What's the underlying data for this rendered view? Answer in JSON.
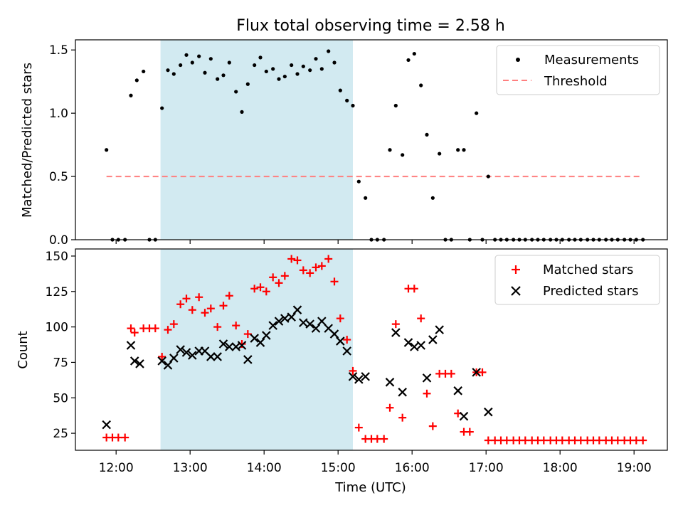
{
  "chart_data": [
    {
      "type": "scatter",
      "title": "Flux total observing time = 2.58 h",
      "xlabel": "",
      "ylabel": "Matched/Predicted stars",
      "xlim_hours": [
        11.45,
        19.45
      ],
      "ylim": [
        0,
        1.58
      ],
      "yticks": [
        0.0,
        0.5,
        1.0,
        1.5
      ],
      "ytick_labels": [
        "0.0",
        "0.5",
        "1.0",
        "1.5"
      ],
      "legend_position": "top-right",
      "shaded_region": {
        "x_start": 12.6,
        "x_end": 15.2,
        "color": "#add8e6"
      },
      "series": [
        {
          "name": "Measurements",
          "marker": "dot",
          "color": "#000000",
          "x": [
            11.87,
            11.95,
            12.03,
            12.12,
            12.2,
            12.28,
            12.37,
            12.45,
            12.53,
            12.62,
            12.7,
            12.78,
            12.87,
            12.95,
            13.03,
            13.12,
            13.2,
            13.28,
            13.37,
            13.45,
            13.53,
            13.62,
            13.7,
            13.78,
            13.87,
            13.95,
            14.03,
            14.12,
            14.2,
            14.28,
            14.37,
            14.45,
            14.53,
            14.62,
            14.7,
            14.78,
            14.87,
            14.95,
            15.03,
            15.12,
            15.2,
            15.28,
            15.37,
            15.45,
            15.53,
            15.62,
            15.7,
            15.78,
            15.87,
            15.95,
            16.03,
            16.12,
            16.2,
            16.28,
            16.37,
            16.45,
            16.53,
            16.62,
            16.7,
            16.78,
            16.87,
            16.95,
            17.03,
            17.12,
            17.2,
            17.28,
            17.37,
            17.45,
            17.53,
            17.62,
            17.7,
            17.78,
            17.87,
            17.95,
            18.03,
            18.12,
            18.2,
            18.28,
            18.37,
            18.45,
            18.53,
            18.62,
            18.7,
            18.78,
            18.87,
            18.95,
            19.03,
            19.12
          ],
          "y": [
            0.71,
            0,
            0,
            0,
            1.14,
            1.26,
            1.33,
            0,
            0,
            1.04,
            1.34,
            1.31,
            1.38,
            1.46,
            1.4,
            1.45,
            1.32,
            1.43,
            1.27,
            1.3,
            1.4,
            1.17,
            1.01,
            1.23,
            1.38,
            1.44,
            1.33,
            1.35,
            1.27,
            1.29,
            1.38,
            1.31,
            1.37,
            1.34,
            1.43,
            1.35,
            1.49,
            1.4,
            1.18,
            1.1,
            1.06,
            0.46,
            0.33,
            0,
            0,
            0,
            0.71,
            1.06,
            0.67,
            1.42,
            1.47,
            1.22,
            0.83,
            0.33,
            0.68,
            0,
            0,
            0.71,
            0.71,
            0,
            1.0,
            0,
            0.5,
            0,
            0,
            0,
            0,
            0,
            0,
            0,
            0,
            0,
            0,
            0,
            0,
            0,
            0,
            0,
            0,
            0,
            0,
            0,
            0,
            0,
            0,
            0,
            0,
            0
          ]
        },
        {
          "name": "Threshold",
          "marker": "dashed-line",
          "color": "#ff7f7f",
          "x": [
            11.87,
            19.12
          ],
          "y": [
            0.5,
            0.5
          ]
        }
      ]
    },
    {
      "type": "scatter",
      "title": "",
      "xlabel": "Time (UTC)",
      "ylabel": "Count",
      "xlim_hours": [
        11.45,
        19.45
      ],
      "ylim": [
        13,
        155
      ],
      "yticks": [
        25,
        50,
        75,
        100,
        125,
        150
      ],
      "ytick_labels": [
        "25",
        "50",
        "75",
        "100",
        "125",
        "150"
      ],
      "xticks": [
        12,
        13,
        14,
        15,
        16,
        17,
        18,
        19
      ],
      "xtick_labels": [
        "12:00",
        "13:00",
        "14:00",
        "15:00",
        "16:00",
        "17:00",
        "18:00",
        "19:00"
      ],
      "legend_position": "top-right",
      "shaded_region": {
        "x_start": 12.6,
        "x_end": 15.2,
        "color": "#add8e6"
      },
      "series": [
        {
          "name": "Matched stars",
          "marker": "plus",
          "color": "#ff0000",
          "x": [
            11.87,
            11.95,
            12.03,
            12.12,
            12.2,
            12.25,
            12.37,
            12.45,
            12.53,
            12.62,
            12.7,
            12.78,
            12.87,
            12.95,
            13.03,
            13.12,
            13.2,
            13.28,
            13.37,
            13.45,
            13.53,
            13.62,
            13.7,
            13.78,
            13.87,
            13.95,
            14.03,
            14.12,
            14.2,
            14.28,
            14.37,
            14.45,
            14.53,
            14.62,
            14.7,
            14.78,
            14.87,
            14.95,
            15.03,
            15.12,
            15.2,
            15.28,
            15.37,
            15.45,
            15.53,
            15.62,
            15.7,
            15.78,
            15.87,
            15.95,
            16.03,
            16.12,
            16.2,
            16.28,
            16.37,
            16.45,
            16.53,
            16.62,
            16.7,
            16.78,
            16.87,
            16.95,
            17.03,
            17.12,
            17.2,
            17.28,
            17.37,
            17.45,
            17.53,
            17.62,
            17.7,
            17.78,
            17.87,
            17.95,
            18.03,
            18.12,
            18.2,
            18.28,
            18.37,
            18.45,
            18.53,
            18.62,
            18.7,
            18.78,
            18.87,
            18.95,
            19.03,
            19.12
          ],
          "y": [
            22,
            22,
            22,
            22,
            99,
            96,
            99,
            99,
            99,
            79,
            98,
            102,
            116,
            120,
            112,
            121,
            110,
            113,
            100,
            115,
            122,
            101,
            88,
            95,
            127,
            128,
            125,
            135,
            131,
            136,
            148,
            147,
            140,
            138,
            142,
            143,
            148,
            132,
            106,
            91,
            69,
            29,
            21,
            21,
            21,
            21,
            43,
            102,
            36,
            127,
            127,
            106,
            53,
            30,
            67,
            67,
            67,
            39,
            26,
            26,
            68,
            68,
            20,
            20,
            20,
            20,
            20,
            20,
            20,
            20,
            20,
            20,
            20,
            20,
            20,
            20,
            20,
            20,
            20,
            20,
            20,
            20,
            20,
            20,
            20,
            20,
            20,
            20
          ]
        },
        {
          "name": "Predicted stars",
          "marker": "x",
          "color": "#000000",
          "x": [
            11.87,
            12.2,
            12.25,
            12.32,
            12.62,
            12.7,
            12.78,
            12.87,
            12.95,
            13.03,
            13.12,
            13.2,
            13.28,
            13.37,
            13.45,
            13.53,
            13.62,
            13.7,
            13.78,
            13.87,
            13.95,
            14.03,
            14.12,
            14.2,
            14.28,
            14.37,
            14.45,
            14.53,
            14.62,
            14.7,
            14.78,
            14.87,
            14.95,
            15.03,
            15.12,
            15.2,
            15.28,
            15.37,
            15.7,
            15.78,
            15.87,
            15.95,
            16.03,
            16.12,
            16.2,
            16.28,
            16.37,
            16.62,
            16.7,
            16.87,
            17.03
          ],
          "y": [
            31,
            87,
            76,
            74,
            76,
            73,
            78,
            84,
            82,
            80,
            83,
            83,
            79,
            79,
            88,
            86,
            86,
            87,
            77,
            92,
            89,
            94,
            101,
            104,
            106,
            107,
            112,
            103,
            102,
            99,
            104,
            99,
            95,
            90,
            83,
            65,
            63,
            65,
            61,
            96,
            54,
            89,
            86,
            87,
            64,
            91,
            98,
            55,
            37,
            68,
            40
          ]
        }
      ]
    }
  ]
}
